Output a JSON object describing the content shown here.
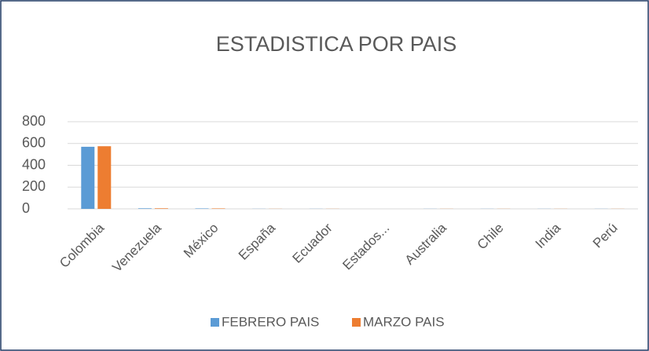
{
  "chart_data": {
    "type": "bar",
    "title": "ESTADISTICA POR PAIS",
    "categories": [
      "Colombia",
      "Venezuela",
      "México",
      "España",
      "Ecuador",
      "Estados...",
      "Australia",
      "Chile",
      "India",
      "Perú"
    ],
    "series": [
      {
        "name": "FEBRERO PAIS",
        "color": "#5b9bd5",
        "values": [
          570,
          5,
          4,
          1,
          1,
          0,
          1,
          1,
          1,
          1
        ]
      },
      {
        "name": "MARZO PAIS",
        "color": "#ed7d31",
        "values": [
          575,
          5,
          4,
          1,
          1,
          0,
          1,
          1,
          1,
          1
        ]
      }
    ],
    "ylim": [
      0,
      800
    ],
    "yticks": [
      0,
      200,
      400,
      600,
      800
    ],
    "grid": true,
    "legend": "bottom"
  }
}
